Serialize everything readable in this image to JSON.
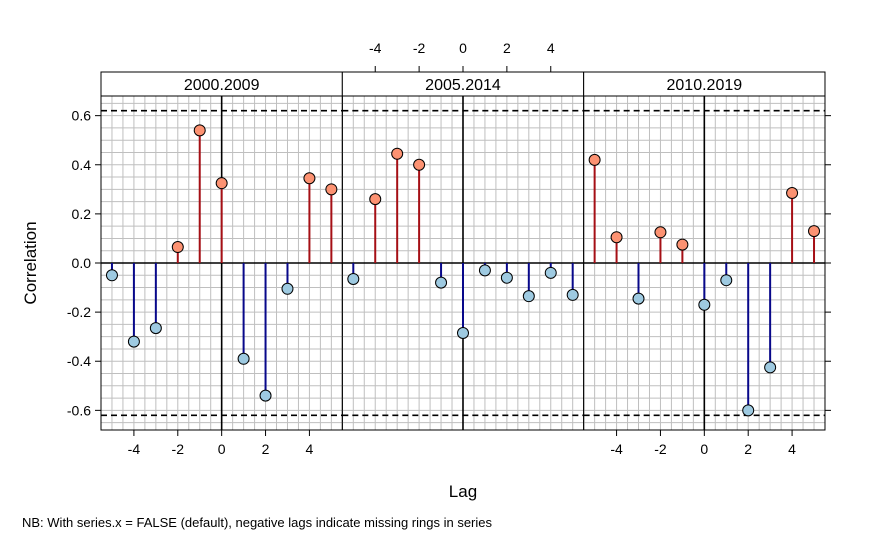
{
  "chart_data": {
    "type": "lollipop",
    "xlabel": "Lag",
    "ylabel": "Correlation",
    "xlim": [
      -5.5,
      5.5
    ],
    "ylim": [
      -0.68,
      0.68
    ],
    "x_ticks": [
      -4,
      -2,
      0,
      2,
      4
    ],
    "y_ticks": [
      -0.6,
      -0.4,
      -0.2,
      0.0,
      0.2,
      0.4,
      0.6
    ],
    "y_tick_labels": [
      "-0.6",
      "-0.4",
      "-0.2",
      "0.0",
      "0.2",
      "0.4",
      "0.6"
    ],
    "confidence_bound": 0.62,
    "grid": true,
    "panels": [
      {
        "label": "2000.2009",
        "x_axis_side": "bottom",
        "lags": [
          -5,
          -4,
          -3,
          -2,
          -1,
          0,
          1,
          2,
          3,
          4,
          5
        ],
        "values": [
          -0.05,
          -0.32,
          -0.265,
          0.065,
          0.54,
          0.325,
          -0.39,
          -0.54,
          -0.105,
          0.345,
          0.3
        ]
      },
      {
        "label": "2005.2014",
        "x_axis_side": "top",
        "lags": [
          -5,
          -4,
          -3,
          -2,
          -1,
          0,
          1,
          2,
          3,
          4,
          5
        ],
        "values": [
          -0.065,
          0.26,
          0.445,
          0.4,
          -0.08,
          -0.285,
          -0.03,
          -0.06,
          -0.135,
          -0.04,
          -0.13
        ]
      },
      {
        "label": "2010.2019",
        "x_axis_side": "bottom",
        "lags": [
          -5,
          -4,
          -3,
          -2,
          -1,
          0,
          1,
          2,
          3,
          4,
          5
        ],
        "values": [
          0.42,
          0.105,
          -0.145,
          0.125,
          0.075,
          -0.17,
          -0.07,
          -0.6,
          -0.425,
          0.285,
          0.13
        ]
      }
    ],
    "colors": {
      "positive_line": "#a50f15",
      "positive_fill": "#fc9272",
      "negative_line": "#08088a",
      "negative_fill": "#9ecae1",
      "grid": "#bfbfbf",
      "strip_fill": "#ffffff"
    }
  },
  "footnote": "NB: With series.x = FALSE (default), negative lags indicate missing rings in series"
}
